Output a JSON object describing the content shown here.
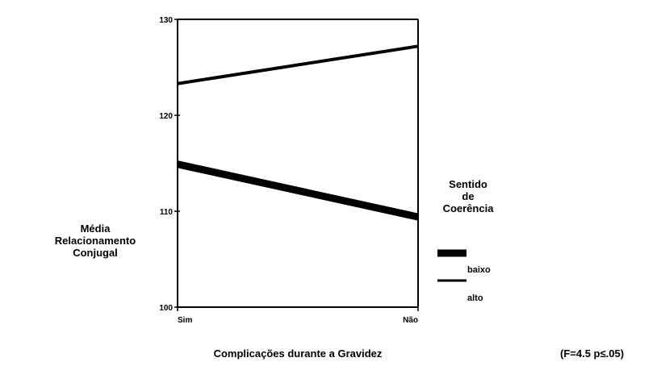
{
  "chart_data": {
    "type": "line",
    "title": "",
    "xlabel": "Complicações durante a Gravidez",
    "ylabel_lines": [
      "Média",
      "Relacionamento",
      "Conjugal"
    ],
    "categories": [
      "Sim",
      "Não"
    ],
    "yticks": [
      "100",
      "110",
      "120",
      "130"
    ],
    "ylim": [
      100,
      130
    ],
    "grid": false,
    "legend": {
      "title_lines": [
        "Sentido",
        "de",
        "Coerência"
      ],
      "position": "right",
      "entries": [
        "baixo",
        "alto"
      ]
    },
    "series": [
      {
        "name": "baixo",
        "values": [
          114.9,
          109.4
        ],
        "stroke": "thick"
      },
      {
        "name": "alto",
        "values": [
          123.3,
          127.2
        ],
        "stroke": "thin"
      }
    ],
    "annotation": "(F=4.5 p≤.05)"
  },
  "colors": {
    "line": "#000000",
    "background": "#ffffff"
  }
}
